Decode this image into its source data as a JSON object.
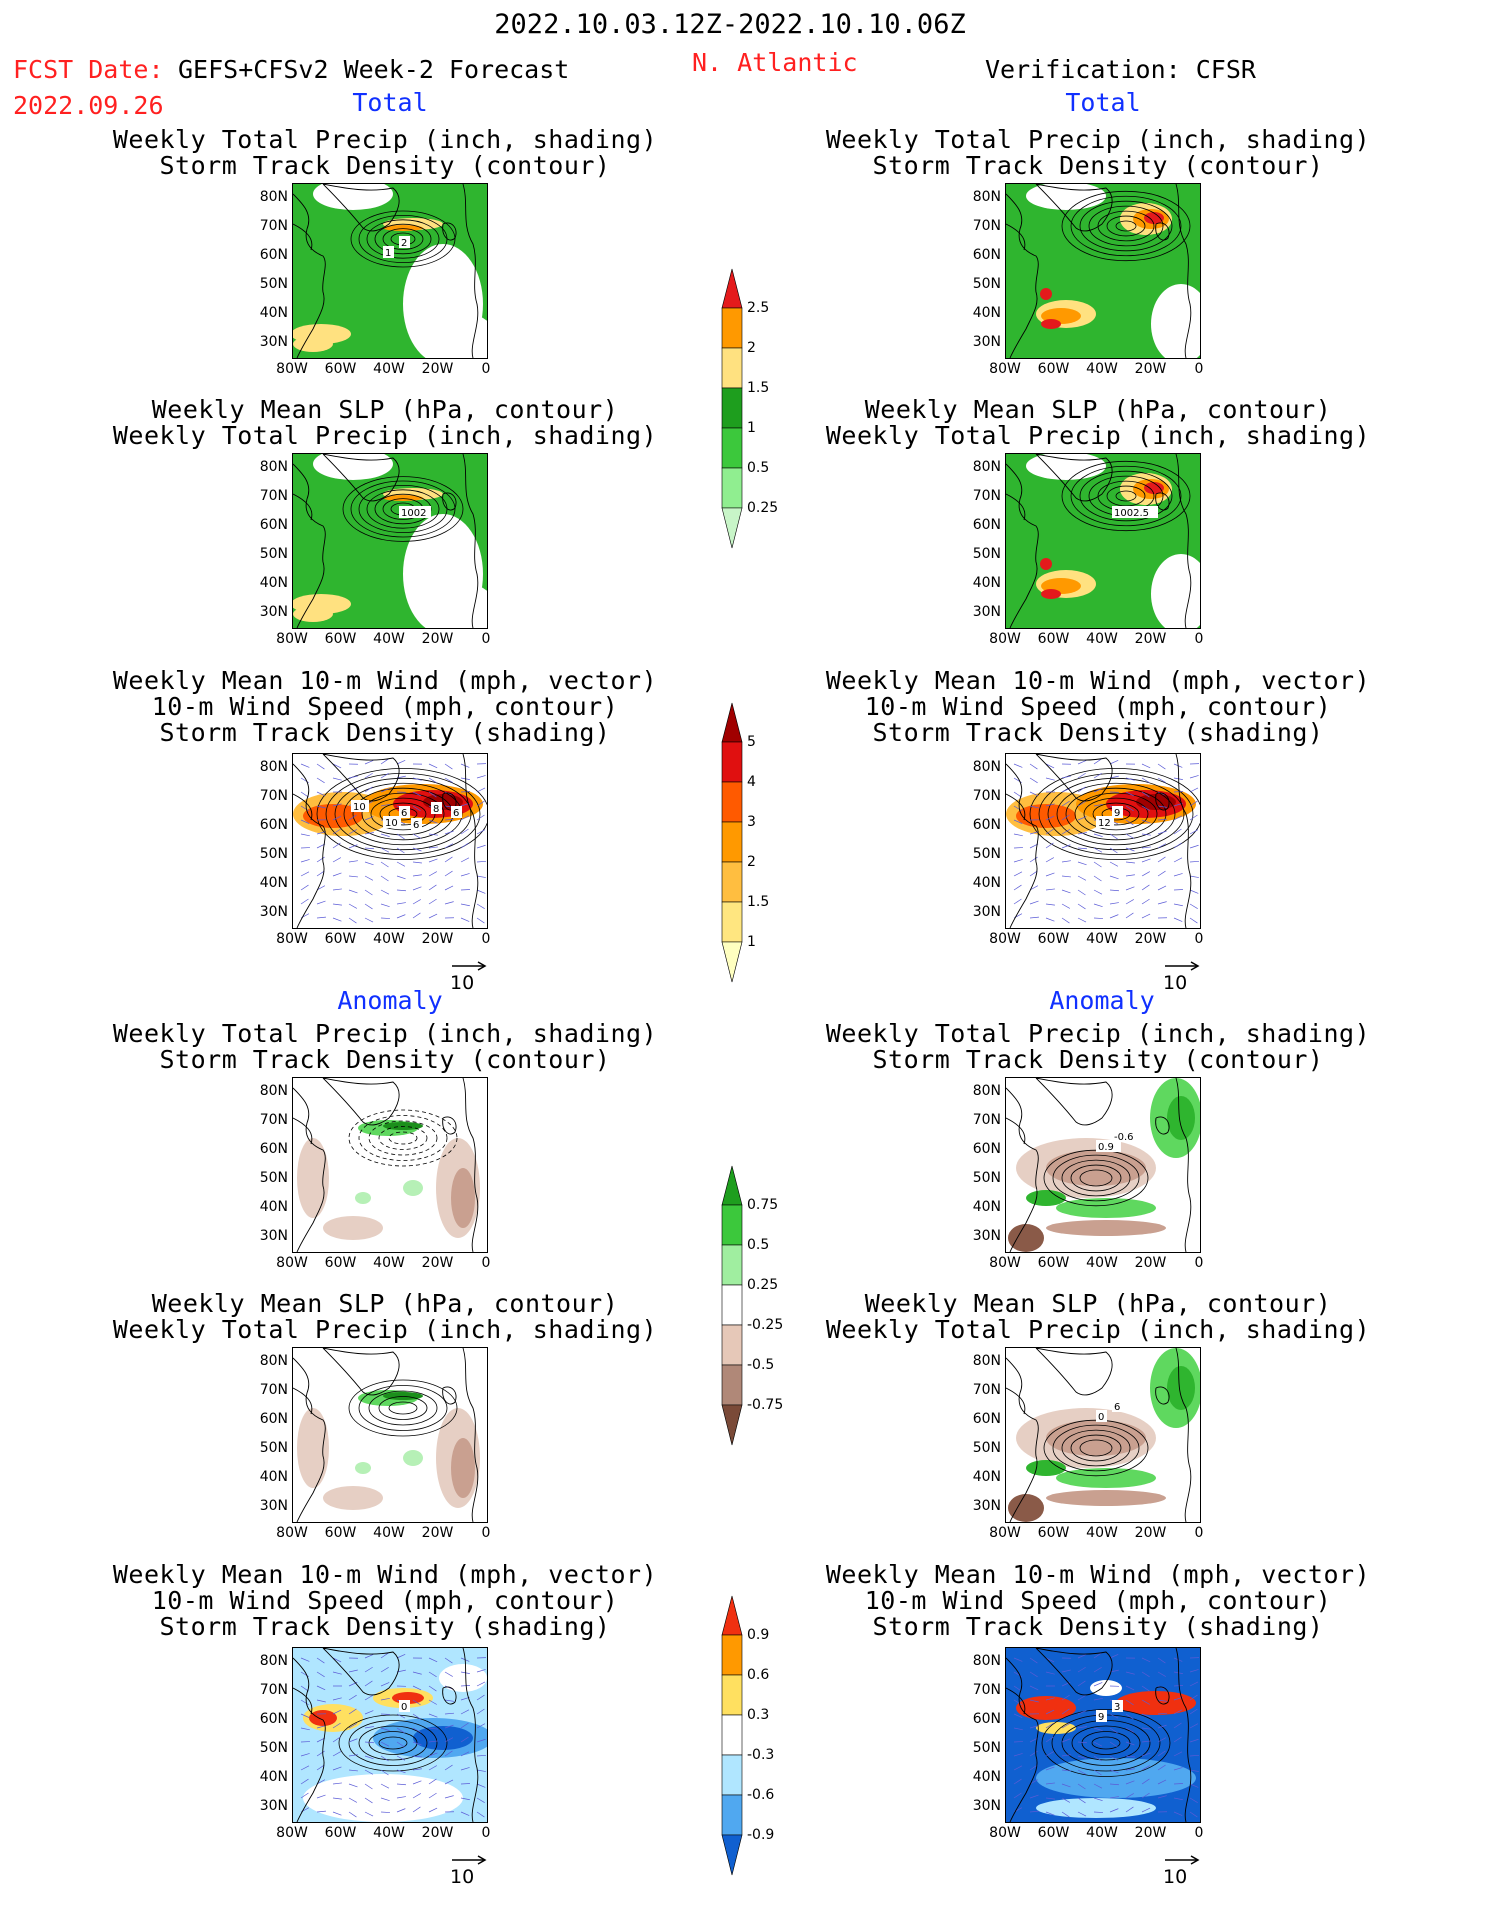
{
  "header": {
    "period": "2022.10.03.12Z-2022.10.10.06Z",
    "fcst_label": "FCST Date:",
    "fcst_model": "GEFS+CFSv2 Week-2 Forecast",
    "fcst_date": "2022.09.26",
    "region": "N. Atlantic",
    "verification": "Verification: CFSR"
  },
  "sections": {
    "total": "Total",
    "anomaly": "Anomaly"
  },
  "titles": {
    "precip_track": [
      "Weekly Total Precip (inch, shading)",
      "Storm Track Density (contour)"
    ],
    "slp_precip": [
      "Weekly Mean SLP (hPa, contour)",
      "Weekly Total Precip (inch, shading)"
    ],
    "wind_track": [
      "Weekly Mean 10-m Wind (mph, vector)",
      "10-m Wind Speed (mph, contour)",
      "Storm Track Density (shading)"
    ]
  },
  "axes": {
    "lat_ticks": [
      "80N",
      "70N",
      "60N",
      "50N",
      "40N",
      "30N"
    ],
    "lon_ticks": [
      "80W",
      "60W",
      "40W",
      "20W",
      "0"
    ]
  },
  "vector_ref": "10",
  "contour_labels": {
    "total_fcst_track": [
      "2",
      "1"
    ],
    "total_fcst_slp": [
      "1002"
    ],
    "total_verif_slp": [
      "1002.5"
    ],
    "total_fcst_wind": [
      "6",
      "10",
      "10",
      "6",
      "8",
      "6"
    ],
    "total_verif_wind": [
      "9",
      "12"
    ],
    "anom_verif_track": [
      "-0.6",
      "0.9"
    ],
    "anom_verif_slp": [
      "6",
      "0"
    ],
    "anom_fcst_wind": [
      "0"
    ],
    "anom_verif_wind": [
      "3",
      "9"
    ]
  },
  "colorbars": {
    "total_precip": {
      "labels": [
        "2.5",
        "2",
        "1.5",
        "1",
        "0.5",
        "0.25"
      ],
      "colors": [
        "#e41a1c",
        "#ff9900",
        "#ffe180",
        "#1e9e1e",
        "#3cc83c",
        "#90ee90",
        "#c8f5c8"
      ]
    },
    "total_track": {
      "labels": [
        "5",
        "4",
        "3",
        "2",
        "1.5",
        "1"
      ],
      "colors": [
        "#a00000",
        "#e01010",
        "#ff5a00",
        "#ff9900",
        "#ffbe40",
        "#ffe680",
        "#ffffc0"
      ]
    },
    "anom_precip": {
      "labels": [
        "0.75",
        "0.5",
        "0.25",
        "-0.25",
        "-0.5",
        "-0.75"
      ],
      "colors": [
        "#1e9e1e",
        "#3cc83c",
        "#a0eea0",
        "#ffffff",
        "#e6c8b8",
        "#b08878",
        "#7a4a38"
      ]
    },
    "anom_track": {
      "labels": [
        "0.9",
        "0.6",
        "0.3",
        "-0.3",
        "-0.6",
        "-0.9"
      ],
      "colors": [
        "#f03010",
        "#ff9900",
        "#ffe060",
        "#ffffff",
        "#b0e6ff",
        "#50a8f0",
        "#1060d0"
      ]
    }
  }
}
